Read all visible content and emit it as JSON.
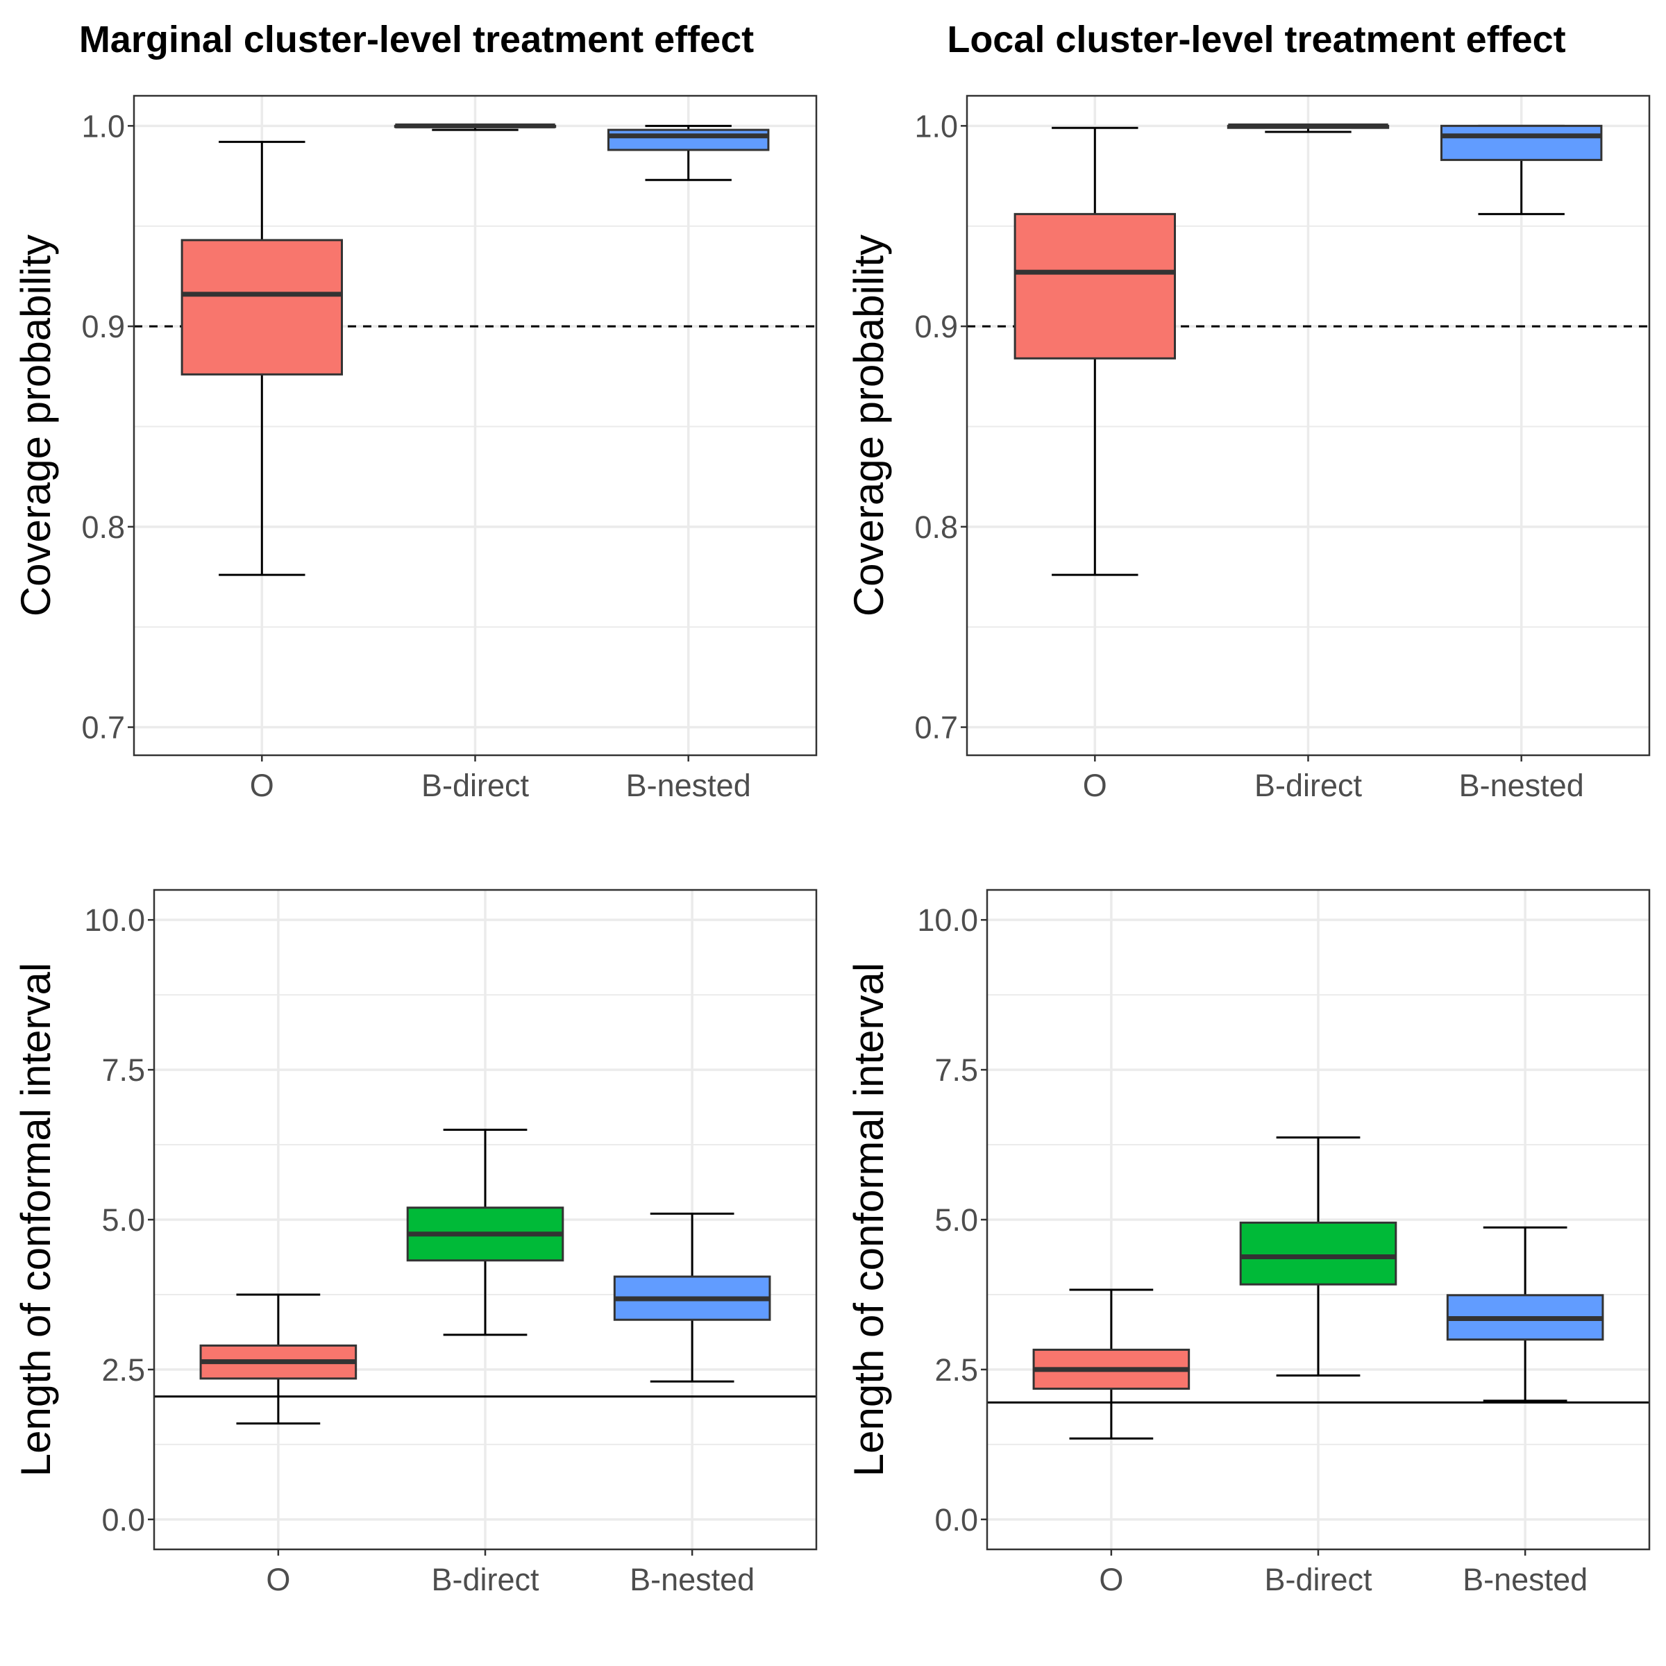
{
  "column_titles": [
    "Marginal cluster-level treatment effect",
    "Local cluster-level treatment effect"
  ],
  "colors": {
    "O": "#F8766D",
    "B-direct": "#00BA38",
    "B-nested": "#619CFF",
    "box_border": "#333333",
    "grid": "#ebebeb",
    "panel_border": "#333333"
  },
  "chart_data": [
    {
      "type": "boxplot",
      "panel": "coverage-marginal",
      "title": "Marginal cluster-level treatment effect",
      "xlabel": "",
      "ylabel": "Coverage probability",
      "categories": [
        "O",
        "B-direct",
        "B-nested"
      ],
      "ylim": [
        0.686,
        1.015
      ],
      "yticks": [
        0.7,
        0.8,
        0.9,
        1.0
      ],
      "ytick_labels": [
        "0.7",
        "0.8",
        "0.9",
        "1.0"
      ],
      "reference_line": {
        "value": 0.9,
        "style": "dashed"
      },
      "boxes": [
        {
          "category": "O",
          "min": 0.776,
          "q1": 0.876,
          "median": 0.916,
          "q3": 0.943,
          "max": 0.992
        },
        {
          "category": "B-direct",
          "min": 0.998,
          "q1": 0.9995,
          "median": 1.0,
          "q3": 1.0,
          "max": 1.0
        },
        {
          "category": "B-nested",
          "min": 0.973,
          "q1": 0.988,
          "median": 0.995,
          "q3": 0.998,
          "max": 1.0
        }
      ]
    },
    {
      "type": "boxplot",
      "panel": "coverage-local",
      "title": "Local cluster-level treatment effect",
      "xlabel": "",
      "ylabel": "Coverage probability",
      "categories": [
        "O",
        "B-direct",
        "B-nested"
      ],
      "ylim": [
        0.686,
        1.015
      ],
      "yticks": [
        0.7,
        0.8,
        0.9,
        1.0
      ],
      "ytick_labels": [
        "0.7",
        "0.8",
        "0.9",
        "1.0"
      ],
      "reference_line": {
        "value": 0.9,
        "style": "dashed"
      },
      "boxes": [
        {
          "category": "O",
          "min": 0.776,
          "q1": 0.884,
          "median": 0.927,
          "q3": 0.956,
          "max": 0.999
        },
        {
          "category": "B-direct",
          "min": 0.997,
          "q1": 0.999,
          "median": 1.0,
          "q3": 1.0,
          "max": 1.0
        },
        {
          "category": "B-nested",
          "min": 0.956,
          "q1": 0.983,
          "median": 0.995,
          "q3": 1.0,
          "max": 1.0
        }
      ]
    },
    {
      "type": "boxplot",
      "panel": "length-marginal",
      "title": "",
      "xlabel": "",
      "ylabel": "Length of conformal interval",
      "categories": [
        "O",
        "B-direct",
        "B-nested"
      ],
      "ylim": [
        -0.5,
        10.5
      ],
      "yticks": [
        0.0,
        2.5,
        5.0,
        7.5,
        10.0
      ],
      "ytick_labels": [
        "0.0",
        "2.5",
        "5.0",
        "7.5",
        "10.0"
      ],
      "reference_line": {
        "value": 2.05,
        "style": "solid"
      },
      "boxes": [
        {
          "category": "O",
          "min": 1.6,
          "q1": 2.35,
          "median": 2.63,
          "q3": 2.9,
          "max": 3.75
        },
        {
          "category": "B-direct",
          "min": 3.08,
          "q1": 4.32,
          "median": 4.76,
          "q3": 5.2,
          "max": 6.5
        },
        {
          "category": "B-nested",
          "min": 2.3,
          "q1": 3.33,
          "median": 3.68,
          "q3": 4.05,
          "max": 5.1
        }
      ]
    },
    {
      "type": "boxplot",
      "panel": "length-local",
      "title": "",
      "xlabel": "",
      "ylabel": "Length of conformal interval",
      "categories": [
        "O",
        "B-direct",
        "B-nested"
      ],
      "ylim": [
        -0.5,
        10.5
      ],
      "yticks": [
        0.0,
        2.5,
        5.0,
        7.5,
        10.0
      ],
      "ytick_labels": [
        "0.0",
        "2.5",
        "5.0",
        "7.5",
        "10.0"
      ],
      "reference_line": {
        "value": 1.95,
        "style": "solid"
      },
      "boxes": [
        {
          "category": "O",
          "min": 1.35,
          "q1": 2.18,
          "median": 2.5,
          "q3": 2.83,
          "max": 3.83
        },
        {
          "category": "B-direct",
          "min": 2.4,
          "q1": 3.92,
          "median": 4.38,
          "q3": 4.95,
          "max": 6.37
        },
        {
          "category": "B-nested",
          "min": 1.98,
          "q1": 3.0,
          "median": 3.35,
          "q3": 3.74,
          "max": 4.87
        }
      ]
    }
  ]
}
